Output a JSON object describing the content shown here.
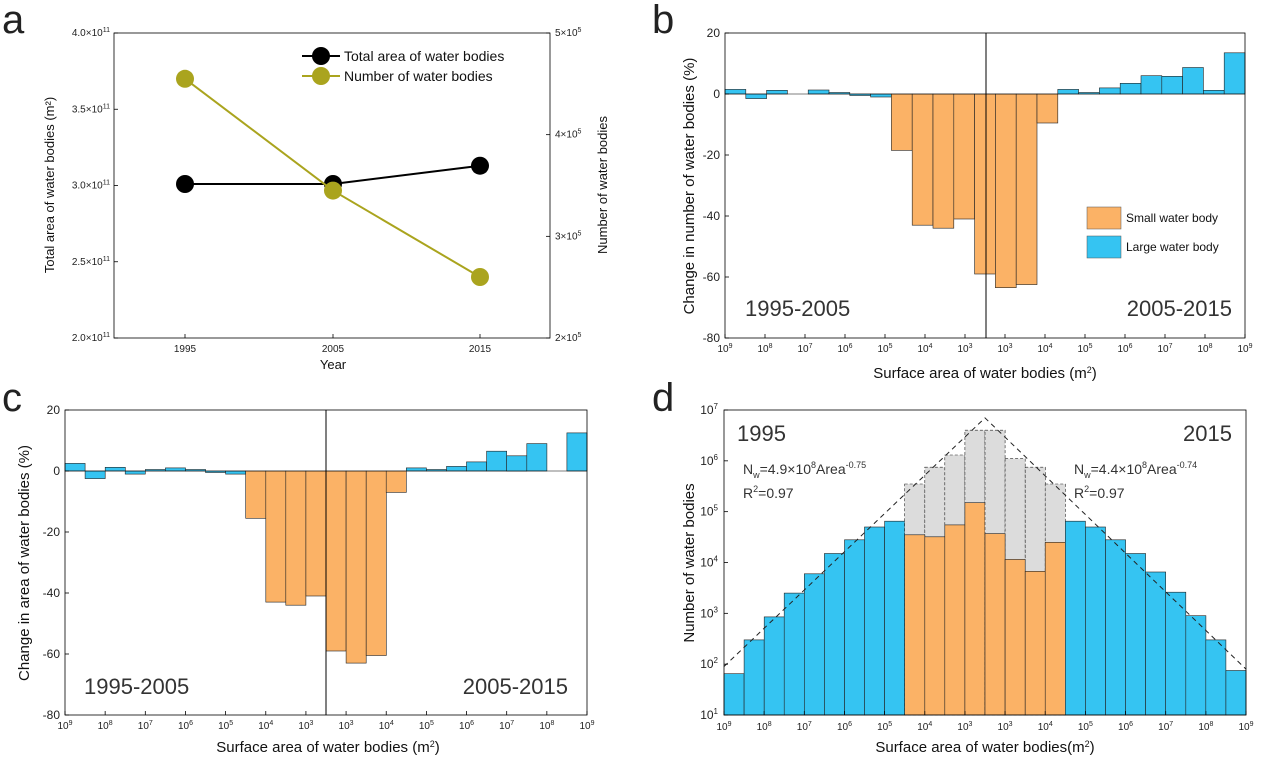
{
  "panels": {
    "a": "a",
    "b": "b",
    "c": "c",
    "d": "d"
  },
  "chart_data": [
    {
      "id": "a",
      "type": "line",
      "x": [
        "1995",
        "2005",
        "2015"
      ],
      "xlabel": "Year",
      "ylabel_left": "Total area of water bodies (m²)",
      "ylabel_right": "Number of water bodies",
      "ylim_left": [
        200000000000.0,
        400000000000.0
      ],
      "ylim_right": [
        200000,
        500000
      ],
      "left_ticks": [
        {
          "value": 200000000000.0,
          "mant": "2.0×10",
          "exp": "11"
        },
        {
          "value": 250000000000.0,
          "mant": "2.5×10",
          "exp": "11"
        },
        {
          "value": 300000000000.0,
          "mant": "3.0×10",
          "exp": "11"
        },
        {
          "value": 350000000000.0,
          "mant": "3.5×10",
          "exp": "11"
        },
        {
          "value": 400000000000.0,
          "mant": "4.0×10",
          "exp": "11"
        }
      ],
      "right_ticks": [
        {
          "value": 200000,
          "mant": "2×10",
          "exp": "5"
        },
        {
          "value": 300000,
          "mant": "3×10",
          "exp": "5"
        },
        {
          "value": 400000,
          "mant": "4×10",
          "exp": "5"
        },
        {
          "value": 500000,
          "mant": "5×10",
          "exp": "5"
        }
      ],
      "series": [
        {
          "name": "Total area of water bodies",
          "axis": "left",
          "color": "#000000",
          "values": [
            301000000000.0,
            301000000000.0,
            313000000000.0
          ]
        },
        {
          "name": "Number of water bodies",
          "axis": "right",
          "color": "#aaa41e",
          "values": [
            455000,
            345000,
            260000
          ]
        }
      ]
    },
    {
      "id": "b",
      "type": "bar",
      "ylabel": "Change in number of water bodies (%)",
      "xlabel_text": "Surface area of water bodies (m",
      "xlabel_sup": "2",
      "ylim": [
        -80,
        20
      ],
      "yticks": [
        20,
        0,
        -20,
        -40,
        -60,
        -80
      ],
      "xtick_exps": [
        "9",
        "8",
        "7",
        "6",
        "5",
        "4",
        "3",
        "3",
        "4",
        "5",
        "6",
        "7",
        "8",
        "9"
      ],
      "period_left": "1995-2005",
      "period_right": "2005-2015",
      "legend": [
        {
          "label": "Small water body",
          "color": "#fbb266"
        },
        {
          "label": "Large water body",
          "color": "#35c4f2"
        }
      ],
      "values": [
        1.5,
        -1.5,
        1.2,
        0,
        1.3,
        0.5,
        -0.5,
        -1,
        -18.5,
        -43,
        -44,
        -41,
        -59,
        -63.5,
        -62.5,
        -9.5,
        1.5,
        0.5,
        2,
        3.5,
        6,
        5.8,
        8.7,
        1.2,
        13.5
      ]
    },
    {
      "id": "c",
      "type": "bar",
      "ylabel": "Change in area of water bodies (%)",
      "xlabel_text": "Surface area of water bodies (m",
      "xlabel_sup": "2",
      "ylim": [
        -80,
        20
      ],
      "yticks": [
        20,
        0,
        -20,
        -40,
        -60,
        -80
      ],
      "xtick_exps": [
        "9",
        "8",
        "7",
        "6",
        "5",
        "4",
        "3",
        "3",
        "4",
        "5",
        "6",
        "7",
        "8",
        "9"
      ],
      "period_left": "1995-2005",
      "period_right": "2005-2015",
      "values": [
        2.5,
        -2.5,
        1.2,
        -1,
        0.5,
        1,
        0.5,
        -0.5,
        -1,
        -15.5,
        -43,
        -44,
        -41,
        -59,
        -63,
        -60.5,
        -7,
        1,
        0.5,
        1.5,
        3,
        6.5,
        5,
        9,
        0,
        12.5
      ]
    },
    {
      "id": "d",
      "type": "bar",
      "ylabel": "Number of water bodies",
      "xlabel_text": "Surface area of water bodies(m",
      "xlabel_sup": "2",
      "yscale": "log",
      "ylim": [
        10,
        10000000
      ],
      "ytick_exps": [
        "7",
        "6",
        "5",
        "4",
        "3",
        "2",
        "1"
      ],
      "xtick_exps": [
        "9",
        "8",
        "7",
        "6",
        "5",
        "4",
        "3",
        "3",
        "4",
        "5",
        "6",
        "7",
        "8",
        "9"
      ],
      "period_left": "1995",
      "period_right": "2015",
      "fit_left": {
        "prefix": "N",
        "sub": "w",
        "mid": "=4.9×10",
        "exp1": "8",
        "word": "Area",
        "exp2": "-0.75",
        "r2_prefix": "R",
        "r2_sup": "2",
        "r2_value": "=0.97"
      },
      "fit_right": {
        "prefix": "N",
        "sub": "w",
        "mid": "=4.4×10",
        "exp1": "8",
        "word": "Area",
        "exp2": "-0.74",
        "r2_prefix": "R",
        "r2_sup": "2",
        "r2_value": "=0.97"
      },
      "counts_1995_side": [
        65,
        300,
        850,
        2500,
        6000,
        15000,
        28000,
        50000,
        65000
      ],
      "counts_2015_side": [
        65000,
        50000,
        28000,
        15000,
        6500,
        2600,
        900,
        300,
        75
      ],
      "small_1995_grey": [
        350000,
        750000,
        1300000,
        4000000
      ],
      "small_1995_orange": [
        35000,
        32000,
        55000,
        150000
      ],
      "small_2015_grey": [
        4000000,
        1100000,
        750000,
        350000
      ],
      "small_2015_orange": [
        37000,
        11500,
        6700,
        25000
      ]
    }
  ]
}
